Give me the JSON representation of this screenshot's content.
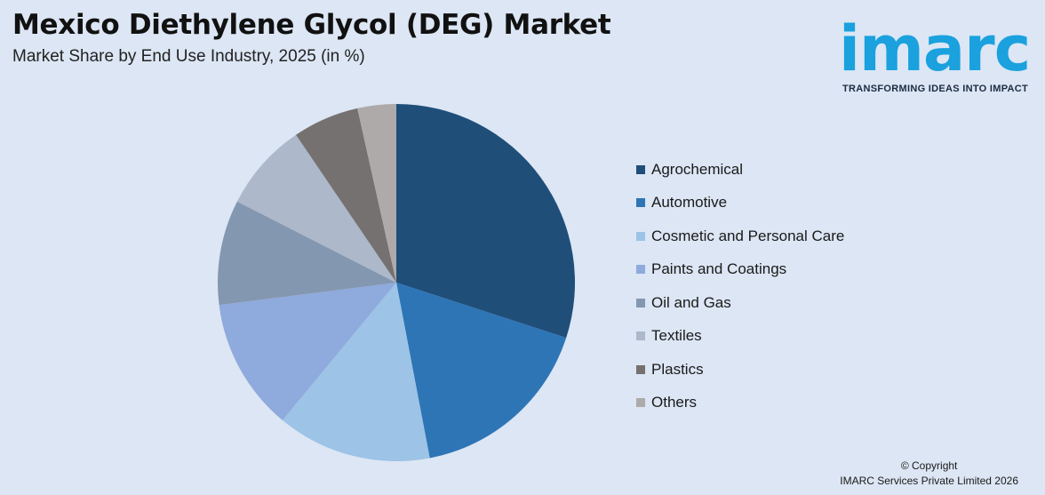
{
  "header": {
    "title": "Mexico Diethylene Glycol (DEG) Market",
    "subtitle": "Market Share by End Use Industry, 2025 (in %)"
  },
  "logo": {
    "wordmark": "imarc",
    "tagline": "TRANSFORMING IDEAS INTO IMPACT",
    "color": "#1aa1de"
  },
  "chart_data": {
    "type": "pie",
    "title": "Mexico Diethylene Glycol (DEG) Market",
    "subtitle": "Market Share by End Use Industry, 2025 (in %)",
    "legend_position": "right",
    "slices": [
      {
        "label": "Agrochemical",
        "value": 30,
        "color": "#1f4e79"
      },
      {
        "label": "Automotive",
        "value": 17,
        "color": "#2e75b6"
      },
      {
        "label": "Cosmetic and Personal Care",
        "value": 14,
        "color": "#9dc3e6"
      },
      {
        "label": "Paints and Coatings",
        "value": 12,
        "color": "#8faadc"
      },
      {
        "label": "Oil and Gas",
        "value": 9.5,
        "color": "#8497b0"
      },
      {
        "label": "Textiles",
        "value": 8,
        "color": "#adb9ca"
      },
      {
        "label": "Plastics",
        "value": 6,
        "color": "#767171"
      },
      {
        "label": "Others",
        "value": 3.5,
        "color": "#aeaaaa"
      }
    ]
  },
  "footer": {
    "copyright_line1": "© Copyright",
    "copyright_line2": "IMARC Services Private Limited 2026"
  }
}
